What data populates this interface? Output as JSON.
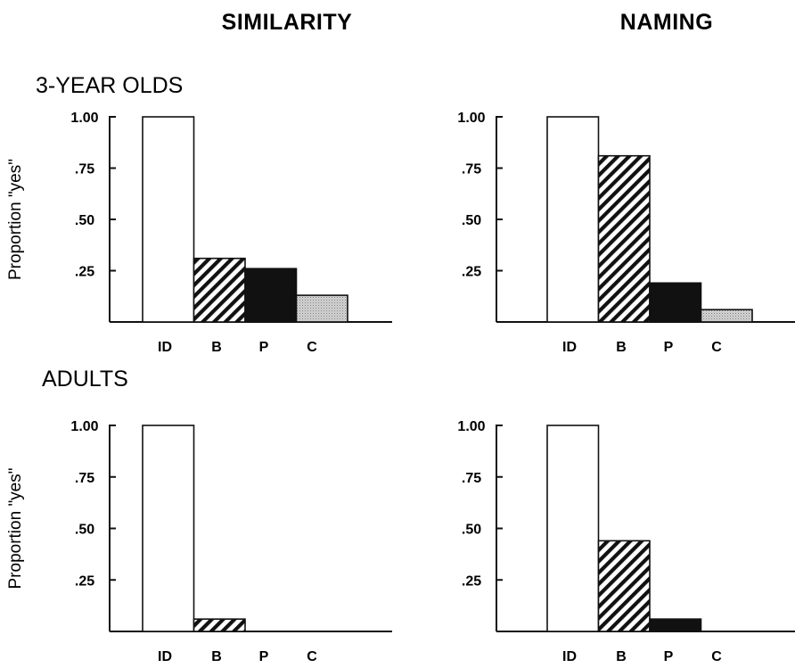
{
  "figure": {
    "col_titles": [
      "SIMILARITY",
      "NAMING"
    ],
    "row_titles": [
      "3-YEAR OLDS",
      "ADULTS"
    ],
    "ylabel": "Proportion  \"yes\""
  },
  "chart_data": [
    {
      "type": "bar",
      "panel": "3-year-olds-similarity",
      "title": "",
      "categories": [
        "ID",
        "B",
        "P",
        "C"
      ],
      "values": [
        1.0,
        0.31,
        0.26,
        0.13
      ],
      "ylabel": "Proportion  \"yes\"",
      "ylim": [
        0,
        1.0
      ],
      "yticks": [
        "1.00",
        ".75",
        ".50",
        ".25"
      ],
      "fills": [
        "white",
        "hatch",
        "black",
        "stipple"
      ],
      "grid": false
    },
    {
      "type": "bar",
      "panel": "3-year-olds-naming",
      "title": "",
      "categories": [
        "ID",
        "B",
        "P",
        "C"
      ],
      "values": [
        1.0,
        0.81,
        0.19,
        0.06
      ],
      "ylabel": "",
      "ylim": [
        0,
        1.0
      ],
      "yticks": [
        "1.00",
        ".75",
        ".50",
        ".25"
      ],
      "fills": [
        "white",
        "hatch",
        "black",
        "stipple"
      ],
      "grid": false
    },
    {
      "type": "bar",
      "panel": "adults-similarity",
      "title": "",
      "categories": [
        "ID",
        "B",
        "P",
        "C"
      ],
      "values": [
        1.0,
        0.06,
        0.0,
        0.0
      ],
      "ylabel": "Proportion  \"yes\"",
      "ylim": [
        0,
        1.0
      ],
      "yticks": [
        "1.00",
        ".75",
        ".50",
        ".25"
      ],
      "fills": [
        "white",
        "hatch",
        "black",
        "stipple"
      ],
      "grid": false
    },
    {
      "type": "bar",
      "panel": "adults-naming",
      "title": "",
      "categories": [
        "ID",
        "B",
        "P",
        "C"
      ],
      "values": [
        1.0,
        0.44,
        0.06,
        0.0
      ],
      "ylabel": "",
      "ylim": [
        0,
        1.0
      ],
      "yticks": [
        "1.00",
        ".75",
        ".50",
        ".25"
      ],
      "fills": [
        "white",
        "hatch",
        "black",
        "stipple"
      ],
      "grid": false
    }
  ]
}
